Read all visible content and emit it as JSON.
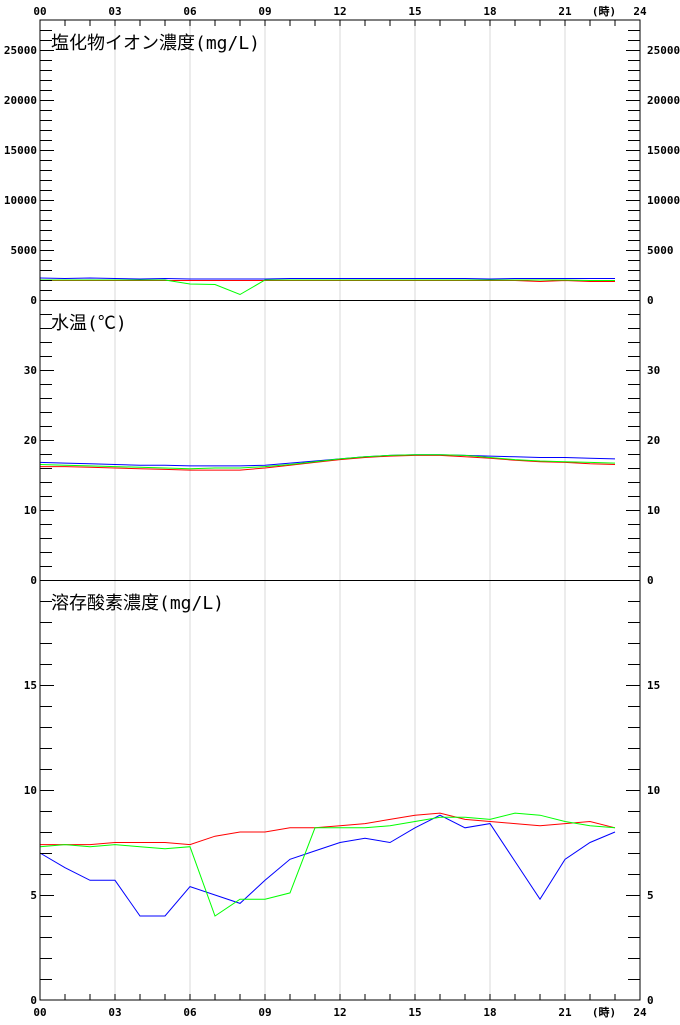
{
  "hour_labels": [
    "00",
    "03",
    "06",
    "09",
    "12",
    "15",
    "18",
    "21",
    "24"
  ],
  "hour_unit": "(時)",
  "chart_data": [
    {
      "type": "line",
      "title": "塩化物イオン濃度(mg/L)",
      "xlim": [
        0,
        24
      ],
      "ylim": [
        0,
        28000
      ],
      "yticks": [
        0,
        5000,
        10000,
        15000,
        20000,
        25000
      ],
      "x": [
        0,
        1,
        2,
        3,
        4,
        5,
        6,
        7,
        8,
        9,
        10,
        11,
        12,
        13,
        14,
        15,
        16,
        17,
        18,
        19,
        20,
        21,
        22,
        23
      ],
      "series": [
        {
          "color": "#0000ff",
          "values": [
            2200,
            2150,
            2200,
            2150,
            2100,
            2150,
            2100,
            2100,
            2100,
            2100,
            2150,
            2150,
            2150,
            2150,
            2150,
            2150,
            2150,
            2150,
            2100,
            2150,
            2150,
            2150,
            2150,
            2150
          ]
        },
        {
          "color": "#ff0000",
          "values": [
            1950,
            1950,
            1950,
            1950,
            1950,
            1950,
            1950,
            1950,
            1950,
            1950,
            1950,
            1950,
            1950,
            1950,
            1950,
            1950,
            1950,
            1950,
            1950,
            1950,
            1850,
            1950,
            1850,
            1850
          ]
        },
        {
          "color": "#00ff00",
          "values": [
            2000,
            2000,
            2000,
            2000,
            2000,
            2000,
            1600,
            1550,
            550,
            2000,
            2000,
            2000,
            2000,
            2000,
            2000,
            2000,
            2000,
            2000,
            2000,
            2000,
            2000,
            2000,
            1950,
            1950
          ]
        }
      ]
    },
    {
      "type": "line",
      "title": "水温(℃)",
      "xlim": [
        0,
        24
      ],
      "ylim": [
        0,
        40
      ],
      "yticks": [
        0,
        10,
        20,
        30
      ],
      "x": [
        0,
        1,
        2,
        3,
        4,
        5,
        6,
        7,
        8,
        9,
        10,
        11,
        12,
        13,
        14,
        15,
        16,
        17,
        18,
        19,
        20,
        21,
        22,
        23
      ],
      "series": [
        {
          "color": "#0000ff",
          "values": [
            16.8,
            16.7,
            16.6,
            16.5,
            16.4,
            16.4,
            16.3,
            16.3,
            16.3,
            16.4,
            16.7,
            17.0,
            17.3,
            17.6,
            17.8,
            17.9,
            17.9,
            17.8,
            17.7,
            17.6,
            17.5,
            17.5,
            17.4,
            17.3
          ]
        },
        {
          "color": "#ff0000",
          "values": [
            16.2,
            16.2,
            16.1,
            16.0,
            15.9,
            15.8,
            15.7,
            15.7,
            15.7,
            16.0,
            16.4,
            16.8,
            17.2,
            17.5,
            17.7,
            17.8,
            17.8,
            17.6,
            17.4,
            17.1,
            16.9,
            16.8,
            16.6,
            16.5
          ]
        },
        {
          "color": "#00ff00",
          "values": [
            16.5,
            16.4,
            16.3,
            16.2,
            16.1,
            16.0,
            15.9,
            16.0,
            16.0,
            16.2,
            16.5,
            16.9,
            17.3,
            17.6,
            17.8,
            17.9,
            17.9,
            17.8,
            17.5,
            17.2,
            17.0,
            16.9,
            16.8,
            16.7
          ]
        }
      ]
    },
    {
      "type": "line",
      "title": "溶存酸素濃度(mg/L)",
      "xlim": [
        0,
        24
      ],
      "ylim": [
        0,
        20
      ],
      "yticks": [
        0,
        5,
        10,
        15
      ],
      "x": [
        0,
        1,
        2,
        3,
        4,
        5,
        6,
        7,
        8,
        9,
        10,
        11,
        12,
        13,
        14,
        15,
        16,
        17,
        18,
        19,
        20,
        21,
        22,
        23
      ],
      "series": [
        {
          "color": "#0000ff",
          "values": [
            7.0,
            6.3,
            5.7,
            5.7,
            4.0,
            4.0,
            5.4,
            5.0,
            4.6,
            5.7,
            6.7,
            7.1,
            7.5,
            7.7,
            7.5,
            8.2,
            8.8,
            8.2,
            8.4,
            6.6,
            4.8,
            6.7,
            7.5,
            8.0
          ]
        },
        {
          "color": "#ff0000",
          "values": [
            7.4,
            7.4,
            7.4,
            7.5,
            7.5,
            7.5,
            7.4,
            7.8,
            8.0,
            8.0,
            8.2,
            8.2,
            8.3,
            8.4,
            8.6,
            8.8,
            8.9,
            8.6,
            8.5,
            8.4,
            8.3,
            8.4,
            8.5,
            8.2
          ]
        },
        {
          "color": "#00ff00",
          "values": [
            7.3,
            7.4,
            7.3,
            7.4,
            7.3,
            7.2,
            7.3,
            4.0,
            4.8,
            4.8,
            5.1,
            8.2,
            8.2,
            8.2,
            8.3,
            8.5,
            8.7,
            8.7,
            8.6,
            8.9,
            8.8,
            8.5,
            8.3,
            8.2
          ]
        }
      ]
    }
  ]
}
